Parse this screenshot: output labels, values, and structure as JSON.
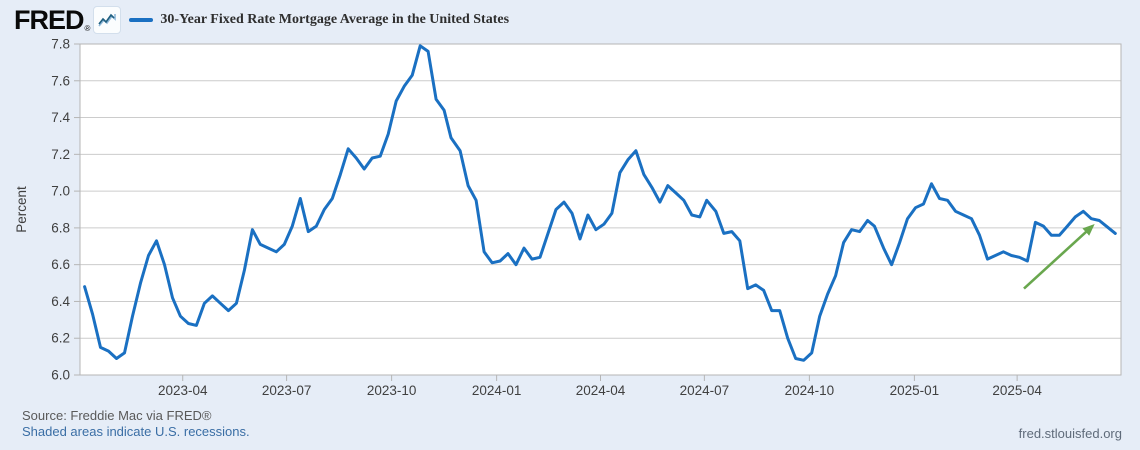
{
  "page": {
    "background": "#e6edf7"
  },
  "header": {
    "logo_text": "FRED",
    "registered_mark": "®",
    "logo_icon": "fred-sparkline-icon",
    "series_title": "30-Year Fixed Rate Mortgage Average in the United States",
    "legend_color": "#1a70c2"
  },
  "footer": {
    "source_text": "Source: Freddie Mac via FRED®",
    "recession_note": "Shaded areas indicate U.S. recessions.",
    "site_link": "fred.stlouisfed.org"
  },
  "colors": {
    "line": "#1a70c2",
    "grid": "#cccccc",
    "plot_border": "#b5b5b5",
    "axis_text": "#404040",
    "arrow_green": "#69a74e",
    "plot_bg": "#ffffff"
  },
  "chart_data": {
    "type": "line",
    "title": "30-Year Fixed Rate Mortgage Average in the United States",
    "xlabel": "",
    "ylabel": "Percent",
    "ylim": [
      6.0,
      7.8
    ],
    "y_ticks": [
      6.0,
      6.2,
      6.4,
      6.6,
      6.8,
      7.0,
      7.2,
      7.4,
      7.6,
      7.8
    ],
    "x_ticks": [
      "2023-04",
      "2023-07",
      "2023-10",
      "2024-01",
      "2024-04",
      "2024-07",
      "2024-10",
      "2025-01",
      "2025-04"
    ],
    "x_domain": [
      "2023-01-01",
      "2025-07-01"
    ],
    "grid": true,
    "legend_position": "top-left",
    "series": [
      {
        "name": "30-Year Fixed Rate Mortgage Average in the United States",
        "dates": [
          "2023-01-05",
          "2023-01-12",
          "2023-01-19",
          "2023-01-26",
          "2023-02-02",
          "2023-02-09",
          "2023-02-16",
          "2023-02-23",
          "2023-03-02",
          "2023-03-09",
          "2023-03-16",
          "2023-03-23",
          "2023-03-30",
          "2023-04-06",
          "2023-04-13",
          "2023-04-20",
          "2023-04-27",
          "2023-05-04",
          "2023-05-11",
          "2023-05-18",
          "2023-05-25",
          "2023-06-01",
          "2023-06-08",
          "2023-06-15",
          "2023-06-22",
          "2023-06-29",
          "2023-07-06",
          "2023-07-13",
          "2023-07-20",
          "2023-07-27",
          "2023-08-03",
          "2023-08-10",
          "2023-08-17",
          "2023-08-24",
          "2023-08-31",
          "2023-09-07",
          "2023-09-14",
          "2023-09-21",
          "2023-09-28",
          "2023-10-05",
          "2023-10-12",
          "2023-10-19",
          "2023-10-26",
          "2023-11-02",
          "2023-11-09",
          "2023-11-16",
          "2023-11-22",
          "2023-11-30",
          "2023-12-07",
          "2023-12-14",
          "2023-12-21",
          "2023-12-28",
          "2024-01-04",
          "2024-01-11",
          "2024-01-18",
          "2024-01-25",
          "2024-02-01",
          "2024-02-08",
          "2024-02-15",
          "2024-02-22",
          "2024-02-29",
          "2024-03-07",
          "2024-03-14",
          "2024-03-21",
          "2024-03-28",
          "2024-04-04",
          "2024-04-11",
          "2024-04-18",
          "2024-04-25",
          "2024-05-02",
          "2024-05-09",
          "2024-05-16",
          "2024-05-23",
          "2024-05-30",
          "2024-06-06",
          "2024-06-13",
          "2024-06-20",
          "2024-06-27",
          "2024-07-03",
          "2024-07-11",
          "2024-07-18",
          "2024-07-25",
          "2024-08-01",
          "2024-08-08",
          "2024-08-15",
          "2024-08-22",
          "2024-08-29",
          "2024-09-05",
          "2024-09-12",
          "2024-09-19",
          "2024-09-26",
          "2024-10-03",
          "2024-10-10",
          "2024-10-17",
          "2024-10-24",
          "2024-10-31",
          "2024-11-07",
          "2024-11-14",
          "2024-11-21",
          "2024-11-27",
          "2024-12-05",
          "2024-12-12",
          "2024-12-19",
          "2024-12-26",
          "2025-01-02",
          "2025-01-09",
          "2025-01-16",
          "2025-01-23",
          "2025-01-30",
          "2025-02-06",
          "2025-02-13",
          "2025-02-20",
          "2025-02-27",
          "2025-03-06",
          "2025-03-13",
          "2025-03-20",
          "2025-03-27",
          "2025-04-03",
          "2025-04-10",
          "2025-04-17",
          "2025-04-24",
          "2025-05-01",
          "2025-05-08",
          "2025-05-15",
          "2025-05-22",
          "2025-05-29",
          "2025-06-05",
          "2025-06-12",
          "2025-06-18",
          "2025-06-26"
        ],
        "values": [
          6.48,
          6.33,
          6.15,
          6.13,
          6.09,
          6.12,
          6.32,
          6.5,
          6.65,
          6.73,
          6.6,
          6.42,
          6.32,
          6.28,
          6.27,
          6.39,
          6.43,
          6.39,
          6.35,
          6.39,
          6.57,
          6.79,
          6.71,
          6.69,
          6.67,
          6.71,
          6.81,
          6.96,
          6.78,
          6.81,
          6.9,
          6.96,
          7.09,
          7.23,
          7.18,
          7.12,
          7.18,
          7.19,
          7.31,
          7.49,
          7.57,
          7.63,
          7.79,
          7.76,
          7.5,
          7.44,
          7.29,
          7.22,
          7.03,
          6.95,
          6.67,
          6.61,
          6.62,
          6.66,
          6.6,
          6.69,
          6.63,
          6.64,
          6.77,
          6.9,
          6.94,
          6.88,
          6.74,
          6.87,
          6.79,
          6.82,
          6.88,
          7.1,
          7.17,
          7.22,
          7.09,
          7.02,
          6.94,
          7.03,
          6.99,
          6.95,
          6.87,
          6.86,
          6.95,
          6.89,
          6.77,
          6.78,
          6.73,
          6.47,
          6.49,
          6.46,
          6.35,
          6.35,
          6.2,
          6.09,
          6.08,
          6.12,
          6.32,
          6.44,
          6.54,
          6.72,
          6.79,
          6.78,
          6.84,
          6.81,
          6.69,
          6.6,
          6.72,
          6.85,
          6.91,
          6.93,
          7.04,
          6.96,
          6.95,
          6.89,
          6.87,
          6.85,
          6.76,
          6.63,
          6.65,
          6.67,
          6.65,
          6.64,
          6.62,
          6.83,
          6.81,
          6.76,
          6.76,
          6.81,
          6.86,
          6.89,
          6.85,
          6.84,
          6.81,
          6.77
        ]
      }
    ],
    "annotation": {
      "type": "arrow",
      "color": "#69a74e",
      "from": [
        "2025-04-07",
        6.47
      ],
      "to": [
        "2025-06-06",
        6.81
      ]
    }
  }
}
